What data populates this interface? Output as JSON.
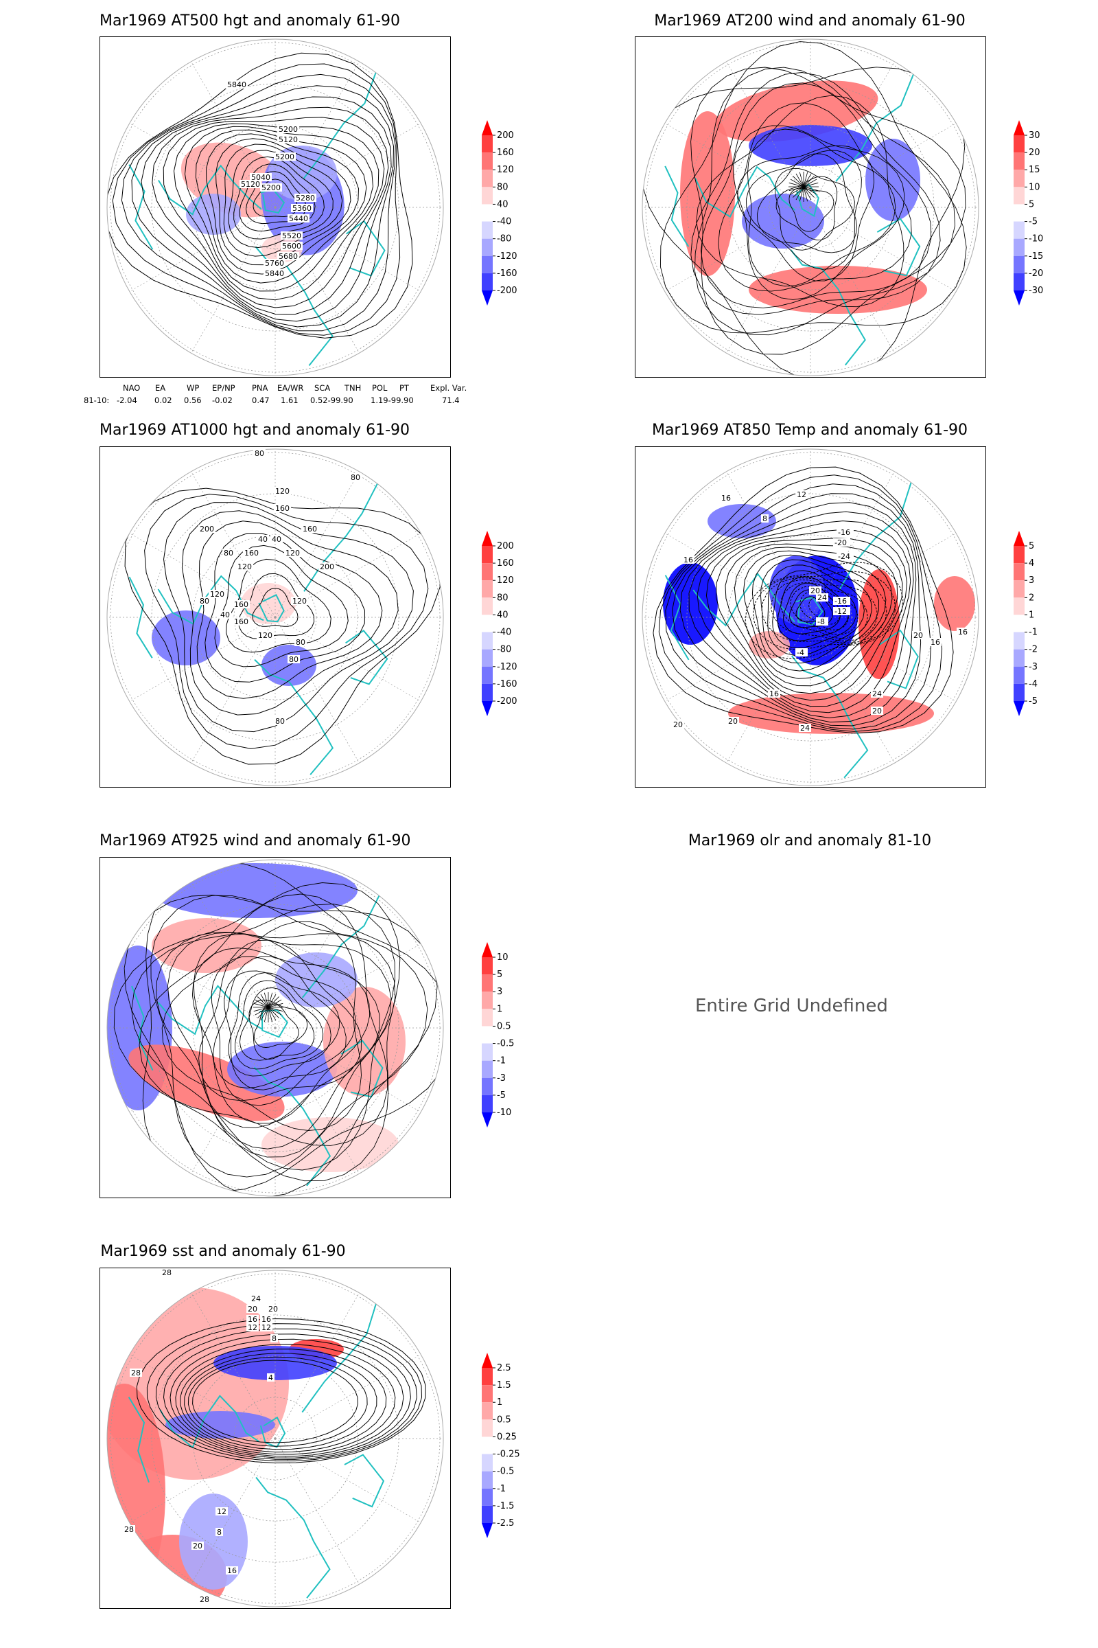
{
  "panels": [
    {
      "title": "Mar1969 AT500 hgt and anomaly 61-90",
      "colorbar_labels": [
        "200",
        "160",
        "120",
        "80",
        "40",
        "-40",
        "-80",
        "-120",
        "-160",
        "-200"
      ],
      "contour_labels": [
        "5840",
        "5200",
        "5120",
        "5200",
        "5040",
        "5120",
        "5200",
        "5280",
        "5360",
        "5440",
        "5520",
        "5600",
        "5680",
        "5760",
        "5840"
      ]
    },
    {
      "title": "Mar1969 AT200 wind and anomaly 61-90",
      "colorbar_labels": [
        "30",
        "20",
        "15",
        "10",
        "5",
        "-5",
        "-10",
        "-15",
        "-20",
        "-30"
      ],
      "contour_labels": []
    },
    {
      "title": "Mar1969 AT1000 hgt and anomaly 61-90",
      "colorbar_labels": [
        "200",
        "160",
        "120",
        "80",
        "40",
        "-40",
        "-80",
        "-120",
        "-160",
        "-200"
      ],
      "contour_labels": [
        "80",
        "80",
        "120",
        "160",
        "160",
        "200",
        "40",
        "40",
        "80",
        "160",
        "120",
        "120",
        "200",
        "120",
        "80",
        "160",
        "120",
        "40",
        "120",
        "160",
        "80",
        "80",
        "80"
      ]
    },
    {
      "title": "Mar1969 AT850 Temp and anomaly 61-90",
      "colorbar_labels": [
        "5",
        "4",
        "3",
        "2",
        "1",
        "-1",
        "-2",
        "-3",
        "-4",
        "-5"
      ],
      "contour_labels": [
        "16",
        "12",
        "8",
        "16",
        "-16",
        "-20",
        "-24",
        "20",
        "24",
        "-16",
        "-12",
        "-8",
        "-4",
        "20",
        "20",
        "16",
        "20",
        "24",
        "24",
        "20",
        "16",
        "16"
      ]
    },
    {
      "title": "Mar1969 AT925 wind and anomaly 61-90",
      "colorbar_labels": [
        "10",
        "5",
        "3",
        "1",
        "0.5",
        "-0.5",
        "-1",
        "-3",
        "-5",
        "-10"
      ],
      "contour_labels": []
    },
    {
      "title": "Mar1969 olr and anomaly 81-10",
      "undefined_message": "Entire Grid Undefined"
    },
    {
      "title": "Mar1969 sst and anomaly 61-90",
      "colorbar_labels": [
        "2.5",
        "1.5",
        "1",
        "0.5",
        "0.25",
        "-0.25",
        "-0.5",
        "-1",
        "-1.5",
        "-2.5"
      ],
      "contour_labels": [
        "28",
        "28",
        "24",
        "20",
        "20",
        "16",
        "16",
        "12",
        "12",
        "8",
        "28",
        "28",
        "4",
        "12",
        "8",
        "20",
        "16",
        "28"
      ]
    }
  ],
  "teleconnections": {
    "headers": [
      "NAO",
      "EA",
      "WP",
      "EP/NP",
      "PNA",
      "EA/WR",
      "SCA",
      "TNH",
      "POL",
      "PT",
      "Expl. Var."
    ],
    "row_label": "81-10:",
    "values": [
      "-2.04",
      "0.02",
      "0.56",
      "-0.02",
      "0.47",
      "1.61",
      "0.52-99.90",
      "1.19-99.90",
      "71.4"
    ]
  },
  "colors": {
    "positive": [
      "#ff0000",
      "#ff4040",
      "#ff7575",
      "#ffa8a8",
      "#ffd6d6"
    ],
    "negative": [
      "#ffffff",
      "#d6d6ff",
      "#a8a8ff",
      "#7575ff",
      "#4040ff",
      "#0000ff"
    ],
    "coast": "#20c0c0",
    "contour": "#000000"
  }
}
